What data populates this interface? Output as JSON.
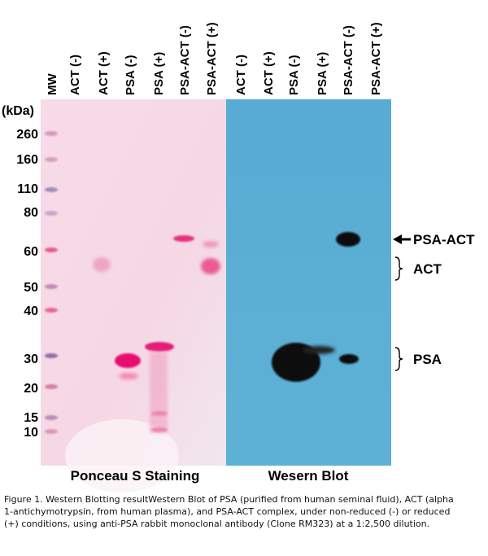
{
  "marker_header": "MW",
  "unit_label": "(kDa)",
  "marker_ticks": [
    "260",
    "160",
    "110",
    "80",
    "60",
    "50",
    "40",
    "30",
    "20",
    "15",
    "10"
  ],
  "ponceau_lanes": [
    "ACT (-)",
    "ACT (+)",
    "PSA (-)",
    "PSA (+)",
    "PSA-ACT (-)",
    "PSA-ACT (+)"
  ],
  "western_lanes": [
    "ACT (-)",
    "ACT (+)",
    "PSA (-)",
    "PSA (+)",
    "PSA-ACT (-)",
    "PSA-ACT (+)"
  ],
  "panel_titles": {
    "ponceau": "Ponceau S Staining",
    "western": "Wesern Blot"
  },
  "band_annotations": {
    "psa_act": "PSA-ACT",
    "act": "ACT",
    "psa": "PSA"
  },
  "caption": "Figure 1. Western Blotting resultWestern Blot of PSA (purified from human seminal fluid), ACT (alpha 1-antichymotrypsin, from human plasma), and PSA-ACT complex, under non-reduced (-) or reduced (+) conditions, using anti-PSA rabbit monoclonal antibody (Clone RM323) at a 1:2,500 dilution.",
  "colors": {
    "ponceau_membrane": "#f7dbe7",
    "western_membrane": "#5aaed4",
    "stain_band": "#e6006e",
    "blot_band": "#101010"
  }
}
